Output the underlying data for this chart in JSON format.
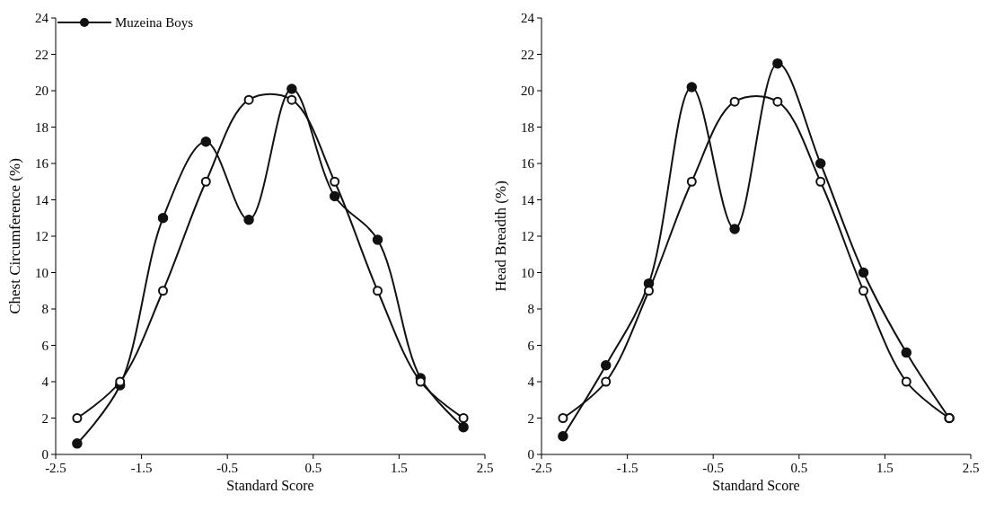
{
  "chart_data": [
    {
      "type": "line",
      "xlabel": "Standard Score",
      "ylabel": "Chest Circumference (%)",
      "x": [
        -2.25,
        -1.75,
        -1.25,
        -0.75,
        -0.25,
        0.25,
        0.75,
        1.25,
        1.75,
        2.25
      ],
      "xlim": [
        -2.5,
        2.5
      ],
      "xticks": [
        -2.5,
        -1.5,
        -0.5,
        0.5,
        1.5,
        2.5
      ],
      "ylim": [
        0,
        24
      ],
      "yticks": [
        0,
        2,
        4,
        6,
        8,
        10,
        12,
        14,
        16,
        18,
        20,
        22,
        24
      ],
      "grid": false,
      "legend": "top left",
      "series": [
        {
          "name": "Muzeina Boys",
          "color": "#111111",
          "marker": "circle",
          "values": [
            0.6,
            3.8,
            13.0,
            17.2,
            12.9,
            20.1,
            14.2,
            11.8,
            4.2,
            1.5
          ]
        },
        {
          "color": "#111111",
          "marker": "open circle",
          "values": [
            2,
            4,
            9,
            15,
            19.5,
            19.5,
            15,
            9,
            4,
            2
          ]
        }
      ]
    },
    {
      "type": "line",
      "xlabel": "Standard Score",
      "ylabel": "Head Breadth (%)",
      "x": [
        -2.25,
        -1.75,
        -1.25,
        -0.75,
        -0.25,
        0.25,
        0.75,
        1.25,
        1.75,
        2.25
      ],
      "xlim": [
        -2.5,
        2.5
      ],
      "xticks": [
        -2.5,
        -1.5,
        -0.5,
        0.5,
        1.5,
        2.5
      ],
      "ylim": [
        0,
        24
      ],
      "yticks": [
        0,
        2,
        4,
        6,
        8,
        10,
        12,
        14,
        16,
        18,
        20,
        22,
        24
      ],
      "grid": false,
      "legend": false,
      "series": [
        {
          "color": "#111111",
          "marker": "circle",
          "values": [
            1.0,
            4.9,
            9.4,
            20.2,
            12.4,
            21.5,
            16.0,
            10.0,
            5.6,
            2.0
          ]
        },
        {
          "color": "#111111",
          "marker": "open circle",
          "values": [
            2,
            4,
            9,
            15,
            19.4,
            19.4,
            15,
            9,
            4,
            2
          ]
        }
      ]
    }
  ]
}
